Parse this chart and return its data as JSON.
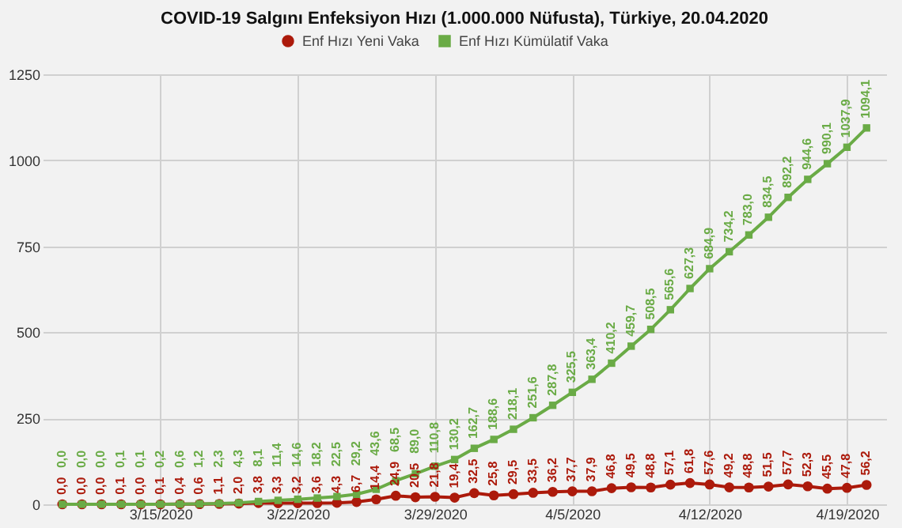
{
  "chart_data": {
    "type": "line",
    "title": "COVID-19 Salgını Enfeksiyon Hızı (1.000.000 Nüfusta), Türkiye, 20.04.2020",
    "x": [
      "2020-03-10",
      "2020-03-11",
      "2020-03-12",
      "2020-03-13",
      "2020-03-14",
      "2020-03-15",
      "2020-03-16",
      "2020-03-17",
      "2020-03-18",
      "2020-03-19",
      "2020-03-20",
      "2020-03-21",
      "2020-03-22",
      "2020-03-23",
      "2020-03-24",
      "2020-03-25",
      "2020-03-26",
      "2020-03-27",
      "2020-03-28",
      "2020-03-29",
      "2020-03-30",
      "2020-03-31",
      "2020-04-01",
      "2020-04-02",
      "2020-04-03",
      "2020-04-04",
      "2020-04-05",
      "2020-04-06",
      "2020-04-07",
      "2020-04-08",
      "2020-04-09",
      "2020-04-10",
      "2020-04-11",
      "2020-04-12",
      "2020-04-13",
      "2020-04-14",
      "2020-04-15",
      "2020-04-16",
      "2020-04-17",
      "2020-04-18",
      "2020-04-19",
      "2020-04-20"
    ],
    "series": [
      {
        "name": "Enf Hızı Yeni Vaka",
        "color": "#ac1a0b",
        "marker": "circle",
        "values": [
          0.0,
          0.0,
          0.0,
          0.1,
          0.0,
          0.1,
          0.4,
          0.6,
          1.1,
          2.0,
          3.8,
          3.3,
          3.2,
          3.6,
          4.3,
          6.7,
          14.4,
          24.9,
          20.5,
          21.8,
          19.4,
          32.5,
          25.8,
          29.5,
          33.5,
          36.2,
          37.7,
          37.9,
          46.8,
          49.5,
          48.8,
          57.1,
          61.8,
          57.6,
          49.2,
          48.8,
          51.5,
          57.7,
          52.3,
          45.5,
          47.8,
          56.2
        ],
        "value_labels": [
          "0,0",
          "0,0",
          "0,0",
          "0,1",
          "0,0",
          "0,1",
          "0,4",
          "0,6",
          "1,1",
          "2,0",
          "3,8",
          "3,3",
          "3,2",
          "3,6",
          "4,3",
          "6,7",
          "14,4",
          "24,9",
          "20,5",
          "21,8",
          "19,4",
          "32,5",
          "25,8",
          "29,5",
          "33,5",
          "36,2",
          "37,7",
          "37,9",
          "46,8",
          "49,5",
          "48,8",
          "57,1",
          "61,8",
          "57,6",
          "49,2",
          "48,8",
          "51,5",
          "57,7",
          "52,3",
          "45,5",
          "47,8",
          "56,2"
        ]
      },
      {
        "name": "Enf Hızı Kümülatif Vaka",
        "color": "#6aab46",
        "marker": "square",
        "values": [
          0.0,
          0.0,
          0.0,
          0.1,
          0.1,
          0.2,
          0.6,
          1.2,
          2.3,
          4.3,
          8.1,
          11.4,
          14.6,
          18.2,
          22.5,
          29.2,
          43.6,
          68.5,
          89.0,
          110.8,
          130.2,
          162.7,
          188.6,
          218.1,
          251.6,
          287.8,
          325.5,
          363.4,
          410.2,
          459.7,
          508.5,
          565.6,
          627.3,
          684.9,
          734.2,
          783.0,
          834.5,
          892.2,
          944.6,
          990.1,
          1037.9,
          1094.1
        ],
        "value_labels": [
          "0,0",
          "0,0",
          "0,0",
          "0,1",
          "0,1",
          "0,2",
          "0,6",
          "1,2",
          "2,3",
          "4,3",
          "8,1",
          "11,4",
          "14,6",
          "18,2",
          "22,5",
          "29,2",
          "43,6",
          "68,5",
          "89,0",
          "110,8",
          "130,2",
          "162,7",
          "188,6",
          "218,1",
          "251,6",
          "287,8",
          "325,5",
          "363,4",
          "410,2",
          "459,7",
          "508,5",
          "565,6",
          "627,3",
          "684,9",
          "734,2",
          "783,0",
          "834,5",
          "892,2",
          "944,6",
          "990,1",
          "1037,9",
          "1094,1"
        ]
      }
    ],
    "xlim": [
      "2020-03-09",
      "2020-04-21"
    ],
    "xticks": [
      {
        "value": "2020-03-15",
        "label": "3/15/2020"
      },
      {
        "value": "2020-03-22",
        "label": "3/22/2020"
      },
      {
        "value": "2020-03-29",
        "label": "3/29/2020"
      },
      {
        "value": "2020-04-05",
        "label": "4/5/2020"
      },
      {
        "value": "2020-04-12",
        "label": "4/12/2020"
      },
      {
        "value": "2020-04-19",
        "label": "4/19/2020"
      }
    ],
    "ylim": [
      0,
      1250
    ],
    "yticks": [
      0,
      250,
      500,
      750,
      1000,
      1250
    ],
    "grid": true,
    "legend": "top",
    "line_style": "solid"
  }
}
